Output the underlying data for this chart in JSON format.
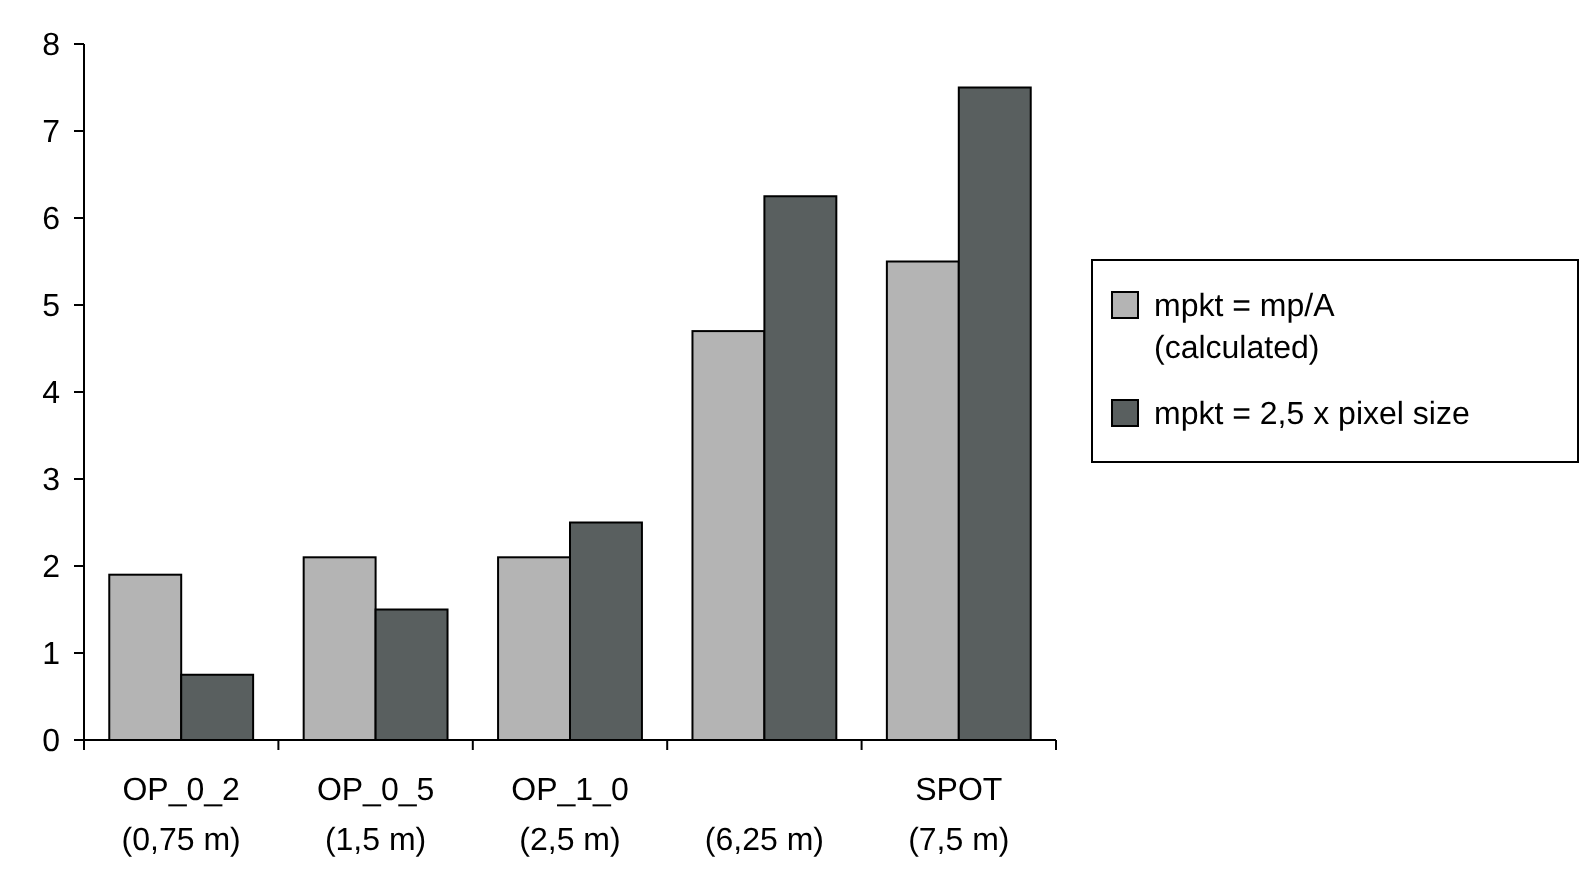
{
  "chart_data": {
    "type": "bar",
    "categories": [
      "OP_0_2\n(0,75 m)",
      "OP_0_5\n(1,5 m)",
      "OP_1_0\n(2,5 m)",
      "(6,25 m)",
      "SPOT\n(7,5 m)"
    ],
    "series": [
      {
        "name": "mpkt = mp/A\n(calculated)",
        "color": "#b4b4b4",
        "values": [
          1.9,
          2.1,
          2.1,
          4.7,
          5.5
        ]
      },
      {
        "name": "mpkt = 2,5 x pixel size",
        "color": "#595f5f",
        "values": [
          0.75,
          1.5,
          2.5,
          6.25,
          7.5
        ]
      }
    ],
    "ylim": [
      0,
      8
    ],
    "yticks": [
      0,
      1,
      2,
      3,
      4,
      5,
      6,
      7,
      8
    ],
    "grid": false,
    "legend": "right"
  }
}
